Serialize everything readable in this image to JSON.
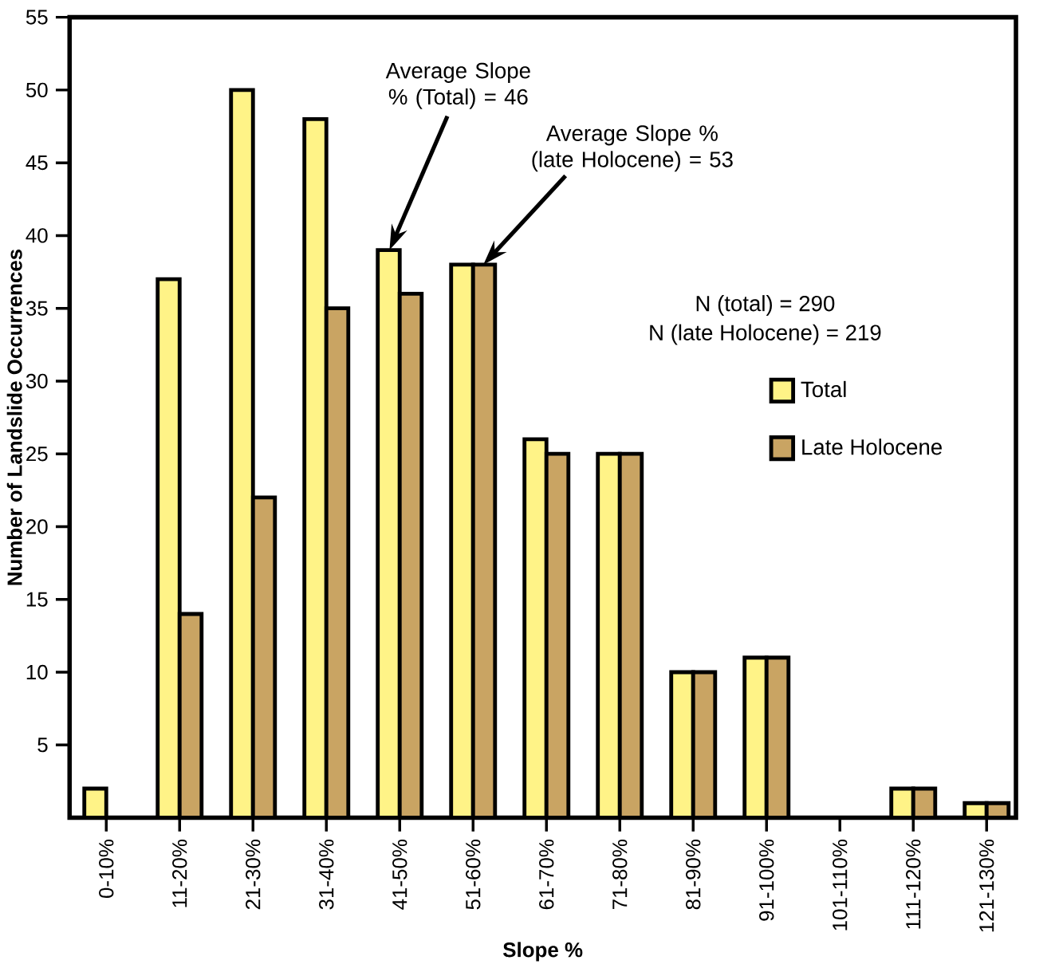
{
  "chart_data": {
    "type": "bar",
    "xlabel": "Slope %",
    "ylabel": "Number of Landslide Occurrences",
    "categories": [
      "0-10%",
      "11-20%",
      "21-30%",
      "31-40%",
      "41-50%",
      "51-60%",
      "61-70%",
      "71-80%",
      "81-90%",
      "91-100%",
      "101-110%",
      "111-120%",
      "121-130%"
    ],
    "series": [
      {
        "name": "Total",
        "color": "#fff387",
        "values": [
          2,
          37,
          50,
          48,
          39,
          38,
          26,
          25,
          10,
          11,
          null,
          2,
          1
        ]
      },
      {
        "name": "Late Holocene",
        "color": "#c9a463",
        "values": [
          null,
          14,
          22,
          35,
          36,
          38,
          25,
          25,
          10,
          11,
          null,
          2,
          1
        ]
      }
    ],
    "ylim": [
      0,
      55
    ],
    "yticks": [
      5,
      10,
      15,
      20,
      25,
      30,
      35,
      40,
      45,
      50,
      55
    ],
    "annotations": [
      "Average Slope % (Total) = 46",
      "Average Slope % (late Holocene) = 53",
      "N (total) = 290",
      "N (late Holocene) = 219"
    ],
    "legend": "right",
    "grid": false
  }
}
